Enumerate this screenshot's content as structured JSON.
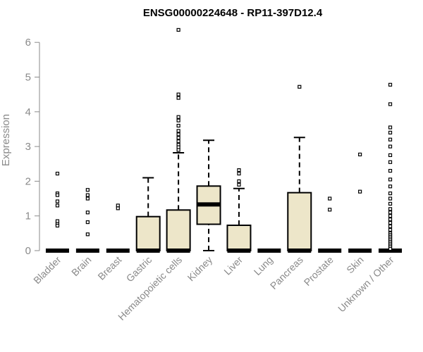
{
  "chart_data": {
    "type": "box",
    "title": "ENSG00000224648 - RP11-397D12.4",
    "xlabel": "",
    "ylabel": "Expression",
    "ylim": [
      0,
      6.4
    ],
    "yticks": [
      0,
      1,
      2,
      3,
      4,
      5,
      6
    ],
    "grid": false,
    "box_fill": "#ede6c9",
    "categories": [
      "Bladder",
      "Brain",
      "Breast",
      "Gastric",
      "Hematopoietic cells",
      "Kidney",
      "Liver",
      "Lung",
      "Pancreas",
      "Prostate",
      "Skin",
      "Unknown / Other"
    ],
    "boxes": [
      {
        "q1": 0,
        "median": 0,
        "q3": 0,
        "whisker_low": 0,
        "whisker_high": 0,
        "outliers": [
          2.22,
          1.65,
          1.6,
          1.42,
          1.3,
          0.85,
          0.77,
          0.72
        ]
      },
      {
        "q1": 0,
        "median": 0,
        "q3": 0,
        "whisker_low": 0,
        "whisker_high": 0,
        "outliers": [
          1.75,
          1.6,
          1.5,
          1.1,
          0.82,
          0.47
        ]
      },
      {
        "q1": 0,
        "median": 0,
        "q3": 0,
        "whisker_low": 0,
        "whisker_high": 0,
        "outliers": [
          1.3,
          1.22
        ]
      },
      {
        "q1": 0,
        "median": 0,
        "q3": 0.98,
        "whisker_low": 0,
        "whisker_high": 2.1,
        "outliers": []
      },
      {
        "q1": 0,
        "median": 0,
        "q3": 1.17,
        "whisker_low": 0,
        "whisker_high": 2.82,
        "outliers": [
          6.36,
          4.5,
          4.4,
          3.85,
          3.75,
          3.6,
          3.45,
          3.35,
          3.25,
          3.15,
          3.05,
          2.98,
          2.9
        ]
      },
      {
        "q1": 0.76,
        "median": 1.33,
        "q3": 1.86,
        "whisker_low": 0,
        "whisker_high": 3.18,
        "outliers": []
      },
      {
        "q1": 0,
        "median": 0,
        "q3": 0.73,
        "whisker_low": 0,
        "whisker_high": 1.79,
        "outliers": [
          2.32,
          2.22,
          2.0,
          1.9
        ]
      },
      {
        "q1": 0,
        "median": 0,
        "q3": 0,
        "whisker_low": 0,
        "whisker_high": 0,
        "outliers": []
      },
      {
        "q1": 0,
        "median": 0,
        "q3": 1.67,
        "whisker_low": 0,
        "whisker_high": 3.26,
        "outliers": [
          4.72
        ]
      },
      {
        "q1": 0,
        "median": 0,
        "q3": 0,
        "whisker_low": 0,
        "whisker_high": 0,
        "outliers": [
          1.5,
          1.18
        ]
      },
      {
        "q1": 0,
        "median": 0,
        "q3": 0,
        "whisker_low": 0,
        "whisker_high": 0,
        "outliers": [
          2.77,
          1.7
        ]
      },
      {
        "q1": 0,
        "median": 0,
        "q3": 0,
        "whisker_low": 0,
        "whisker_high": 0,
        "outliers": [
          4.78,
          4.22,
          3.55,
          3.4,
          3.2,
          3.0,
          2.75,
          2.55,
          2.3,
          2.05,
          1.85,
          1.65,
          1.5,
          1.35,
          1.2,
          1.1,
          1.0,
          0.9,
          0.8,
          0.7,
          0.6,
          0.5,
          0.45,
          0.4,
          0.35,
          0.3,
          0.25,
          0.2,
          0.15,
          0.1,
          0.05
        ]
      }
    ]
  }
}
